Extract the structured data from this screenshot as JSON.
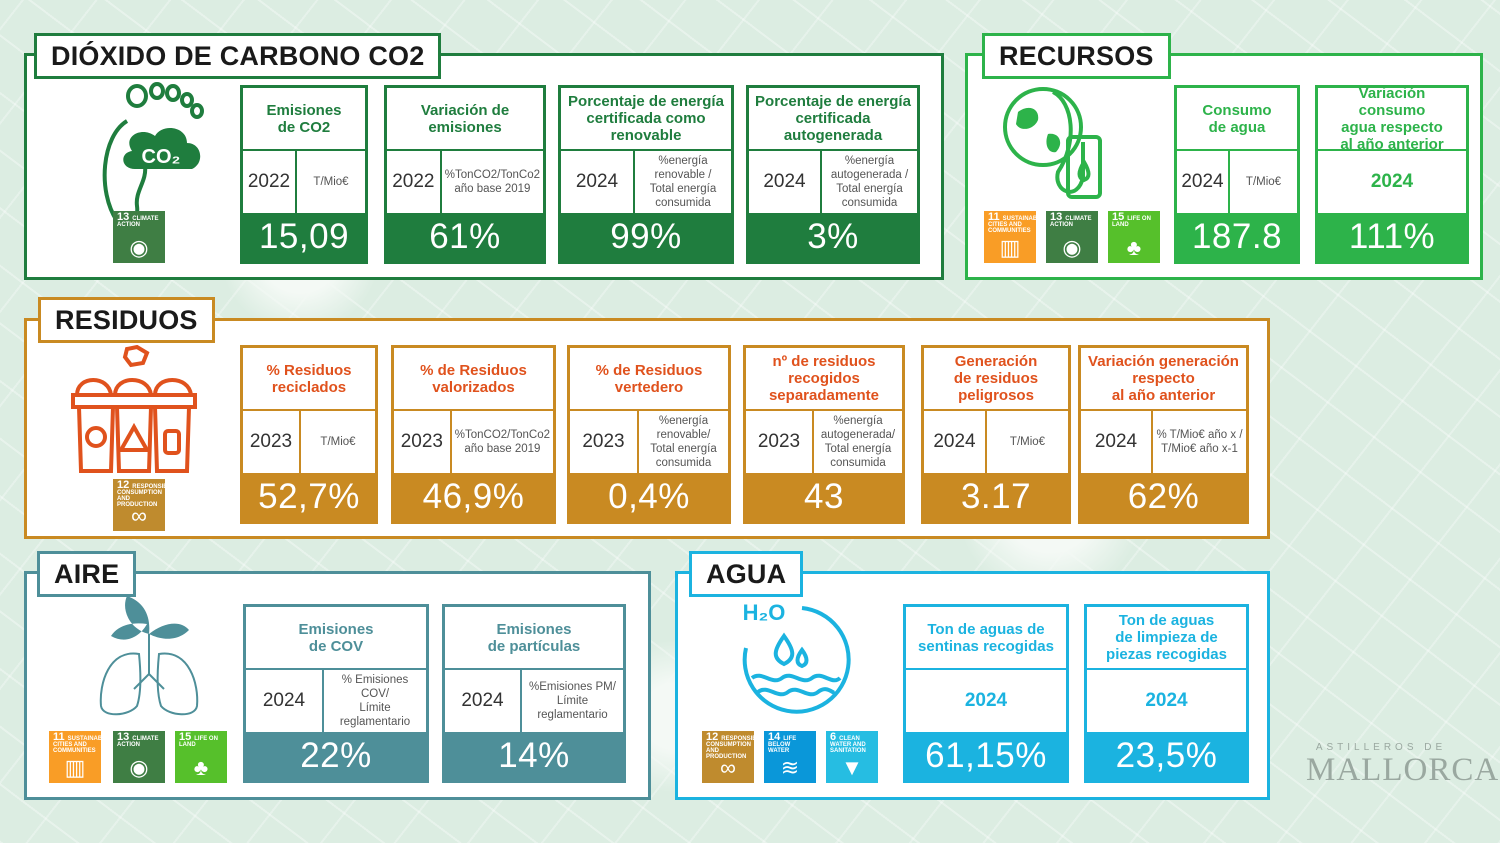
{
  "colors": {
    "co2": "#1f7d3e",
    "recursos": "#2db34a",
    "residuos": "#c98a22",
    "residuos_title": "#e0521d",
    "aire": "#4e8f99",
    "agua": "#1bb3e0"
  },
  "co2": {
    "title": "DIÓXIDO DE CARBONO CO2",
    "icon_text": "CO₂",
    "sdg": [
      {
        "num": "13",
        "label": "CLIMATE ACTION",
        "icon": "eye-icon"
      }
    ],
    "kpis": [
      {
        "title": "Emisiones\nde CO2",
        "year": "2022",
        "unit": "T/Mio€",
        "value": "15,09"
      },
      {
        "title": "Variación de\nemisiones",
        "year": "2022",
        "unit": "%TonCO2/TonCo2\naño base 2019",
        "value": "61%"
      },
      {
        "title": "Porcentaje de energía\ncertificada como\nrenovable",
        "year": "2024",
        "unit": "%energía\nrenovable /\nTotal energía\nconsumida",
        "value": "99%"
      },
      {
        "title": "Porcentaje de energía\ncertificada\nautogenerada",
        "year": "2024",
        "unit": "%energía\nautogenerada /\nTotal energía\nconsumida",
        "value": "3%"
      }
    ]
  },
  "recursos": {
    "title": "RECURSOS",
    "sdg": [
      {
        "num": "11",
        "label": "SUSTAINABLE CITIES AND COMMUNITIES",
        "icon": "city-icon"
      },
      {
        "num": "13",
        "label": "CLIMATE ACTION",
        "icon": "eye-icon"
      },
      {
        "num": "15",
        "label": "LIFE ON LAND",
        "icon": "tree-icon"
      }
    ],
    "kpis": [
      {
        "title": "Consumo\nde agua",
        "year": "2024",
        "unit": "T/Mio€",
        "value": "187.8"
      },
      {
        "title": "Variación consumo\nagua respecto\nal año anterior",
        "year": "2024",
        "unit": "",
        "value": "111%"
      }
    ]
  },
  "residuos": {
    "title": "RESIDUOS",
    "sdg": [
      {
        "num": "12",
        "label": "RESPONSIBLE CONSUMPTION AND PRODUCTION",
        "icon": "infinity-icon"
      }
    ],
    "kpis": [
      {
        "title": "% Residuos\nreciclados",
        "year": "2023",
        "unit": "T/Mio€",
        "value": "52,7%"
      },
      {
        "title": "% de Residuos\nvalorizados",
        "year": "2023",
        "unit": "%TonCO2/TonCo2\naño base 2019",
        "value": "46,9%"
      },
      {
        "title": "% de Residuos\nvertedero",
        "year": "2023",
        "unit": "%energía\nrenovable/\nTotal energía\nconsumida",
        "value": "0,4%"
      },
      {
        "title": "nº de residuos\nrecogidos\nseparadamente",
        "year": "2023",
        "unit": "%energía\nautogenerada/\nTotal energía\nconsumida",
        "value": "43"
      },
      {
        "title": "Generación\nde residuos\npeligrosos",
        "year": "2024",
        "unit": "T/Mio€",
        "value": "3.17"
      },
      {
        "title": "Variación generación\nrespecto\nal año anterior",
        "year": "2024",
        "unit": "% T/Mio€ año x /\nT/Mio€ año x-1",
        "value": "62%"
      }
    ]
  },
  "aire": {
    "title": "AIRE",
    "sdg": [
      {
        "num": "11",
        "label": "SUSTAINABLE CITIES AND COMMUNITIES",
        "icon": "city-icon"
      },
      {
        "num": "13",
        "label": "CLIMATE ACTION",
        "icon": "eye-icon"
      },
      {
        "num": "15",
        "label": "LIFE ON LAND",
        "icon": "tree-icon"
      }
    ],
    "kpis": [
      {
        "title": "Emisiones\nde COV",
        "year": "2024",
        "unit": "% Emisiones COV/\nLímite\nreglamentario",
        "value": "22%"
      },
      {
        "title": "Emisiones\nde partículas",
        "year": "2024",
        "unit": "%Emisiones PM/\nLímite\nreglamentario",
        "value": "14%"
      }
    ]
  },
  "agua": {
    "title": "AGUA",
    "icon_text": "H₂O",
    "sdg": [
      {
        "num": "12",
        "label": "RESPONSIBLE CONSUMPTION AND PRODUCTION",
        "icon": "infinity-icon"
      },
      {
        "num": "14",
        "label": "LIFE BELOW WATER",
        "icon": "fish-icon"
      },
      {
        "num": "6",
        "label": "CLEAN WATER AND SANITATION",
        "icon": "water-drop-icon"
      }
    ],
    "kpis": [
      {
        "title": "Ton de aguas de\nsentinas recogidas",
        "year": "2024",
        "unit": "",
        "value": "61,15%"
      },
      {
        "title": "Ton de aguas\nde limpieza de\npiezas recogidas",
        "year": "2024",
        "unit": "",
        "value": "23,5%"
      }
    ]
  },
  "logo": {
    "line1": "ASTILLEROS DE",
    "line2": "MALLORCA"
  }
}
